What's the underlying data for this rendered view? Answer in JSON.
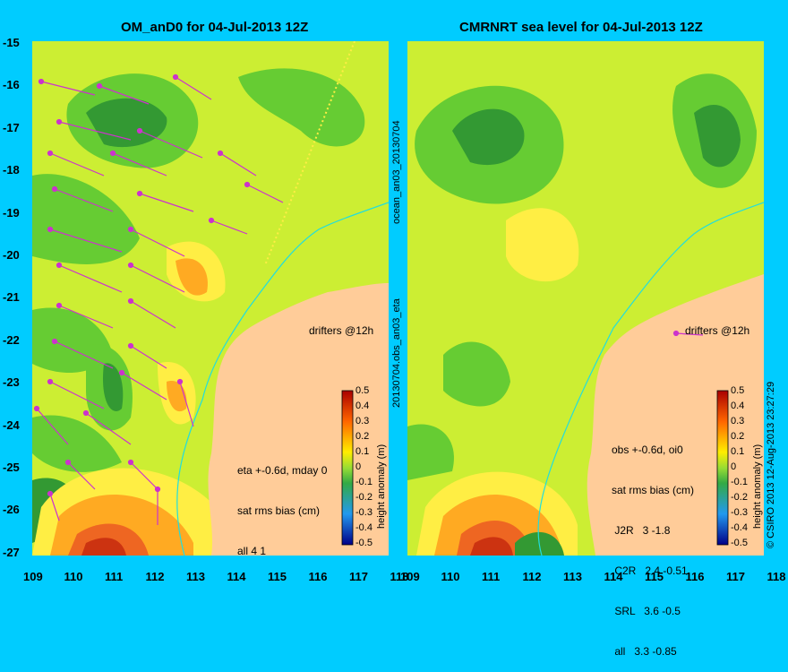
{
  "left": {
    "title": "OM_anD0 for 04-Jul-2013 12Z",
    "legend": [
      "eta +-0.6d, mday 0",
      "sat rms bias (cm)",
      "all 4 1"
    ],
    "drifters": "drifters @12h"
  },
  "right": {
    "title": "CMRNRT sea level  for 04-Jul-2013 12Z",
    "legend": [
      "obs +-0.6d, oi0",
      "sat rms bias (cm)",
      " J2R   3 -1.8",
      " C2R   2.4 -0.51",
      " SRL   3.6 -0.5",
      " all   3.3 -0.85"
    ],
    "drifters": "drifters @12h"
  },
  "axes": {
    "x_ticks": [
      "109",
      "110",
      "111",
      "112",
      "113",
      "114",
      "115",
      "116",
      "117",
      "118"
    ],
    "y_ticks": [
      "-15",
      "-16",
      "-17",
      "-18",
      "-19",
      "-20",
      "-21",
      "-22",
      "-23",
      "-24",
      "-25",
      "-26",
      "-27"
    ]
  },
  "colorbar": {
    "label": "height anomaly (m)",
    "ticks": [
      "0.5",
      "0.4",
      "0.3",
      "0.2",
      "0.1",
      "0",
      "-0.1",
      "-0.2",
      "-0.3",
      "-0.4",
      "-0.5"
    ]
  },
  "side_labels": {
    "middle_top": "ocean_an03_20130704",
    "middle_bottom": "20130704.obs_an03_eta",
    "copyright": "© CSIRO 2013  12-Aug-2013 23:27:29"
  },
  "colors": {
    "background": "#00ccff",
    "land": "#ffcc99",
    "field_base": "#ccee33",
    "green": "#66cc33",
    "dark_green": "#339933",
    "yellow": "#ffee44",
    "orange": "#ffaa22",
    "red": "#cc3311",
    "arrow": "#cc33cc",
    "coast": "#22dddd"
  },
  "icons": [
    "drifter-arrow-icon"
  ]
}
